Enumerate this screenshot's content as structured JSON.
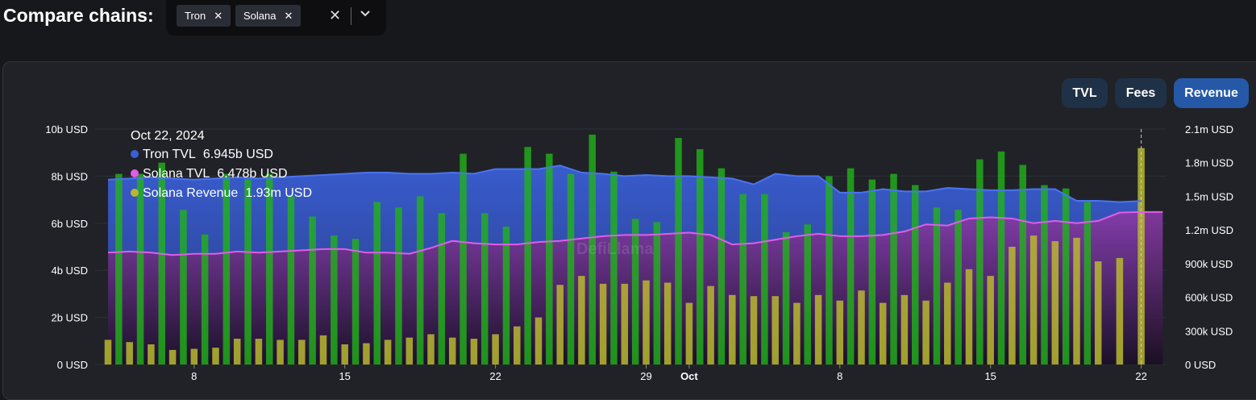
{
  "header": {
    "title": "Compare chains:"
  },
  "chain_picker": {
    "chips": [
      {
        "label": "Tron"
      },
      {
        "label": "Solana"
      }
    ]
  },
  "metric_buttons": [
    {
      "label": "TVL",
      "active": false
    },
    {
      "label": "Fees",
      "active": false
    },
    {
      "label": "Revenue",
      "active": true
    }
  ],
  "colors": {
    "tron_tvl": "#3a5fd6",
    "solana_tvl": "#e25ce8",
    "solana_revenue": "#b8b830",
    "tron_revenue": "#22b31a",
    "active_button": "#2559a8",
    "button": "#1f3146"
  },
  "tooltip": {
    "date": "Oct 22, 2024",
    "rows": [
      {
        "label": "Tron TVL",
        "value": "6.945b USD"
      },
      {
        "label": "Solana TVL",
        "value": "6.478b USD"
      },
      {
        "label": "Solana Revenue",
        "value": "1.93m USD"
      }
    ]
  },
  "chart_data": {
    "type": "bar",
    "x": [
      "Sep 4",
      "Sep 5",
      "Sep 6",
      "Sep 7",
      "Sep 8",
      "Sep 9",
      "Sep 10",
      "Sep 11",
      "Sep 12",
      "Sep 13",
      "Sep 14",
      "Sep 15",
      "Sep 16",
      "Sep 17",
      "Sep 18",
      "Sep 19",
      "Sep 20",
      "Sep 21",
      "Sep 22",
      "Sep 23",
      "Sep 24",
      "Sep 25",
      "Sep 26",
      "Sep 27",
      "Sep 28",
      "Sep 29",
      "Sep 30",
      "Oct 1",
      "Oct 2",
      "Oct 3",
      "Oct 4",
      "Oct 5",
      "Oct 6",
      "Oct 7",
      "Oct 8",
      "Oct 9",
      "Oct 10",
      "Oct 11",
      "Oct 12",
      "Oct 13",
      "Oct 14",
      "Oct 15",
      "Oct 16",
      "Oct 17",
      "Oct 18",
      "Oct 19",
      "Oct 20",
      "Oct 21",
      "Oct 22",
      "Oct 23"
    ],
    "x_ticks": [
      {
        "x": "Sep 8",
        "label": "8"
      },
      {
        "x": "Sep 15",
        "label": "15"
      },
      {
        "x": "Sep 22",
        "label": "22"
      },
      {
        "x": "Sep 29",
        "label": "29"
      },
      {
        "x": "Oct 1",
        "label": "Oct"
      },
      {
        "x": "Oct 8",
        "label": "8"
      },
      {
        "x": "Oct 15",
        "label": "15"
      },
      {
        "x": "Oct 22",
        "label": "22"
      }
    ],
    "y_left": {
      "ticks": [
        "0 USD",
        "2b USD",
        "4b USD",
        "6b USD",
        "8b USD",
        "10b USD"
      ],
      "range": [
        0,
        10000000000
      ]
    },
    "y_right": {
      "ticks": [
        "0 USD",
        "300k USD",
        "600k USD",
        "900k USD",
        "1.2m USD",
        "1.5m USD",
        "1.8m USD",
        "2.1m USD"
      ],
      "range": [
        0,
        2100000000
      ]
    },
    "series": [
      {
        "name": "Tron TVL",
        "kind": "area",
        "axis": "left",
        "values": [
          7.85,
          7.9,
          7.95,
          7.9,
          7.85,
          7.9,
          7.95,
          7.9,
          7.95,
          8.0,
          8.05,
          8.1,
          8.15,
          8.15,
          8.1,
          8.1,
          8.15,
          8.1,
          8.3,
          8.3,
          8.3,
          8.45,
          8.15,
          8.1,
          8.0,
          8.05,
          8.0,
          8.0,
          7.95,
          7.9,
          7.65,
          8.1,
          8.0,
          8.0,
          7.3,
          7.3,
          7.45,
          7.35,
          7.35,
          7.5,
          7.45,
          7.4,
          7.4,
          7.45,
          7.45,
          6.95,
          6.95,
          6.9,
          6.945,
          6.945
        ]
      },
      {
        "name": "Solana TVL",
        "kind": "area",
        "axis": "left",
        "values": [
          4.75,
          4.8,
          4.75,
          4.65,
          4.7,
          4.7,
          4.8,
          4.75,
          4.8,
          4.85,
          4.9,
          4.9,
          4.75,
          4.75,
          4.7,
          4.95,
          5.25,
          5.15,
          5.1,
          5.1,
          5.2,
          5.25,
          5.35,
          5.45,
          5.5,
          5.5,
          5.55,
          5.6,
          5.5,
          5.1,
          5.15,
          5.3,
          5.45,
          5.55,
          5.45,
          5.45,
          5.5,
          5.65,
          5.95,
          5.9,
          6.2,
          6.25,
          6.2,
          6.0,
          6.1,
          6.0,
          6.1,
          6.45,
          6.478,
          6.478
        ]
      },
      {
        "name": "Solana Revenue",
        "kind": "bar",
        "axis": "right",
        "values": [
          0.22,
          0.2,
          0.18,
          0.13,
          0.14,
          0.15,
          0.23,
          0.23,
          0.22,
          0.22,
          0.26,
          0.18,
          0.19,
          0.22,
          0.24,
          0.27,
          0.24,
          0.23,
          0.27,
          0.34,
          0.42,
          0.71,
          0.79,
          0.72,
          0.72,
          0.75,
          0.73,
          0.55,
          0.7,
          0.62,
          0.61,
          0.61,
          0.55,
          0.62,
          0.57,
          0.66,
          0.55,
          0.62,
          0.57,
          0.73,
          0.85,
          0.79,
          1.05,
          1.15,
          1.1,
          1.13,
          0.92,
          0.95,
          1.93,
          0.0
        ]
      },
      {
        "name": "Tron Revenue",
        "kind": "bar",
        "axis": "right",
        "values": [
          1.7,
          1.7,
          1.8,
          1.38,
          1.16,
          1.7,
          1.65,
          1.7,
          1.5,
          1.32,
          1.15,
          1.12,
          1.45,
          1.4,
          1.5,
          1.35,
          1.88,
          1.35,
          1.23,
          1.94,
          1.88,
          1.7,
          2.05,
          1.72,
          1.3,
          1.27,
          2.02,
          1.92,
          1.75,
          1.52,
          1.52,
          1.18,
          1.25,
          1.68,
          1.75,
          1.65,
          1.7,
          1.6,
          1.4,
          1.38,
          1.83,
          1.9,
          1.78,
          1.6,
          1.57,
          1.45,
          0.0,
          0.0,
          0.0,
          0.0
        ]
      }
    ],
    "value_units": {
      "tvl": "billions USD",
      "revenue": "millions USD"
    },
    "crosshair_x": "Oct 22",
    "watermark": "DefiLlama",
    "grid": true
  }
}
